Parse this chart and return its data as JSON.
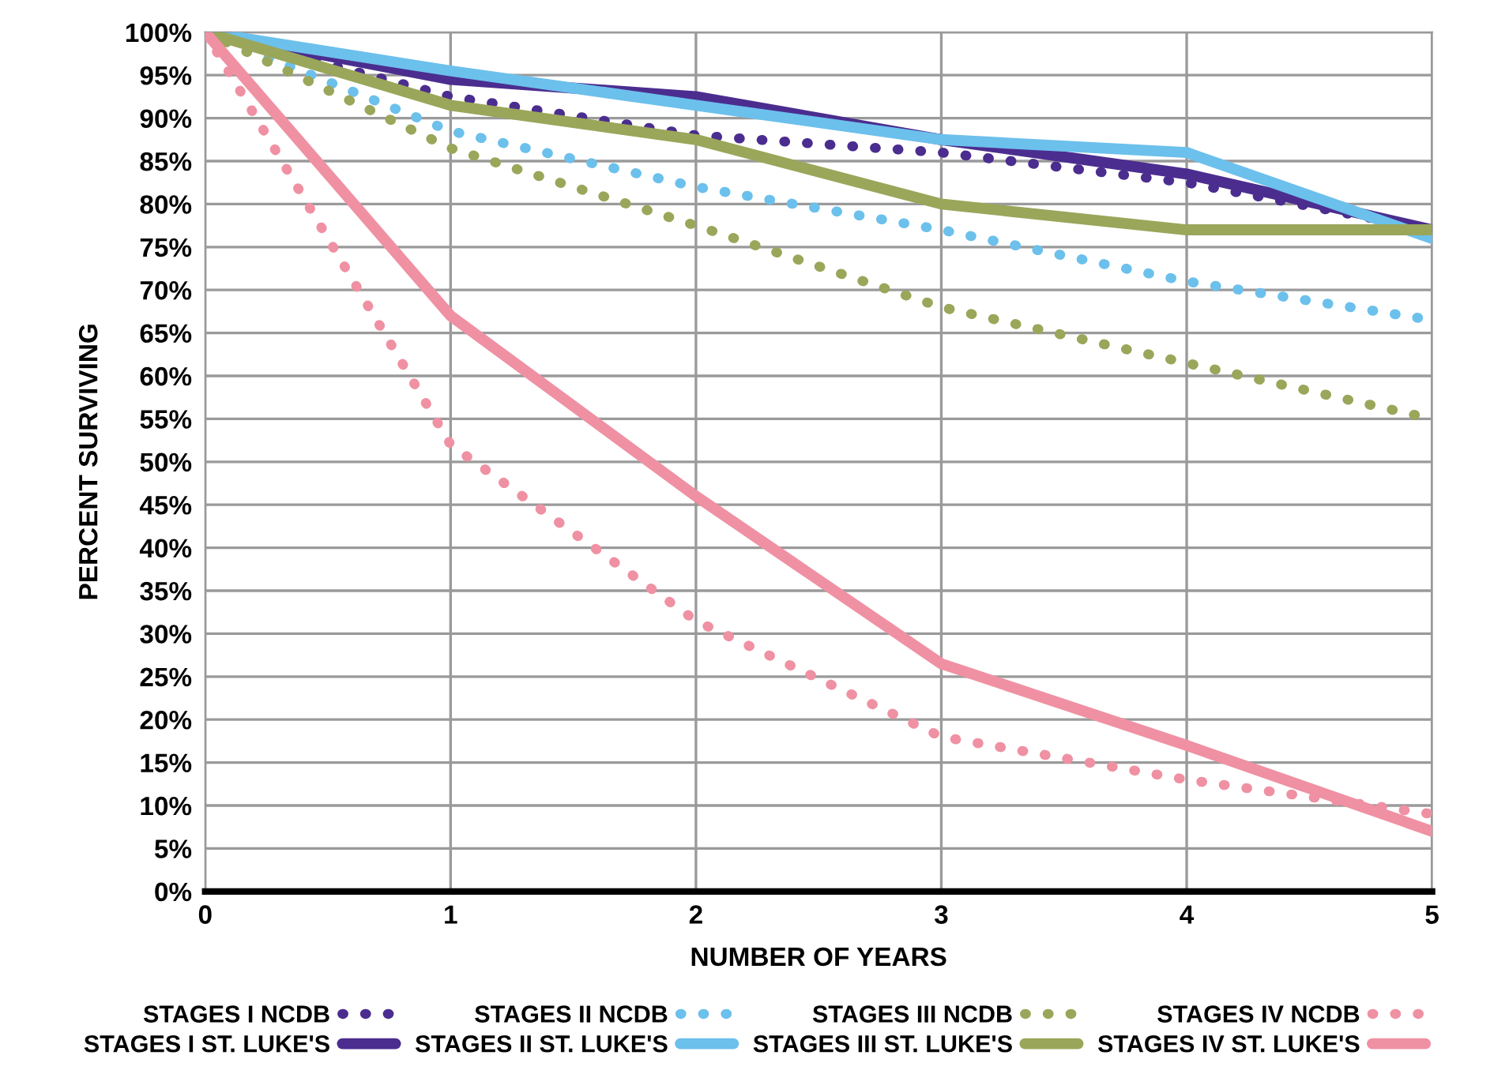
{
  "chart_data": {
    "type": "line",
    "xlabel": "NUMBER OF YEARS",
    "ylabel": "PERCENT SURVIVING",
    "x": [
      0,
      1,
      2,
      3,
      4,
      5
    ],
    "xlim": [
      0,
      5
    ],
    "xticks": [
      0,
      1,
      2,
      3,
      4,
      5
    ],
    "ylim": [
      0,
      100
    ],
    "yticks": [
      {
        "value": 0,
        "label": "0%"
      },
      {
        "value": 5,
        "label": "5%"
      },
      {
        "value": 10,
        "label": "10%"
      },
      {
        "value": 15,
        "label": "15%"
      },
      {
        "value": 20,
        "label": "20%"
      },
      {
        "value": 25,
        "label": "25%"
      },
      {
        "value": 30,
        "label": "30%"
      },
      {
        "value": 35,
        "label": "35%"
      },
      {
        "value": 40,
        "label": "40%"
      },
      {
        "value": 45,
        "label": "45%"
      },
      {
        "value": 50,
        "label": "50%"
      },
      {
        "value": 55,
        "label": "55%"
      },
      {
        "value": 60,
        "label": "60%"
      },
      {
        "value": 65,
        "label": "65%"
      },
      {
        "value": 70,
        "label": "70%"
      },
      {
        "value": 75,
        "label": "75%"
      },
      {
        "value": 80,
        "label": "80%"
      },
      {
        "value": 85,
        "label": "85%"
      },
      {
        "value": 90,
        "label": "90%"
      },
      {
        "value": 95,
        "label": "95%"
      },
      {
        "value": 100,
        "label": "100%"
      }
    ],
    "grid": true,
    "legend": "bottom",
    "marker": "none",
    "series": [
      {
        "name": "STAGES I NCDB",
        "color": "#4b2d8f",
        "line_style": "dotted",
        "values": [
          100,
          92.5,
          88,
          86,
          82.5,
          77
        ]
      },
      {
        "name": "STAGES I ST. LUKE'S",
        "color": "#4b2d8f",
        "line_style": "solid",
        "values": [
          100,
          94.5,
          92.5,
          87.5,
          83.5,
          77
        ]
      },
      {
        "name": "STAGES II NCDB",
        "color": "#6cc0ec",
        "line_style": "dotted",
        "values": [
          100,
          88.5,
          82,
          77,
          71,
          66.5
        ]
      },
      {
        "name": "STAGES II ST. LUKE'S",
        "color": "#6cc0ec",
        "line_style": "solid",
        "values": [
          100,
          95.5,
          91.5,
          87.5,
          86,
          76
        ]
      },
      {
        "name": "STAGES III NCDB",
        "color": "#9aa65a",
        "line_style": "dotted",
        "values": [
          100,
          86.5,
          77.5,
          68,
          61.5,
          55
        ]
      },
      {
        "name": "STAGES III ST. LUKE'S",
        "color": "#9aa65a",
        "line_style": "solid",
        "values": [
          100,
          91.5,
          87.5,
          80,
          77,
          77
        ]
      },
      {
        "name": "STAGES IV NCDB",
        "color": "#ef91a3",
        "line_style": "dotted",
        "values": [
          100,
          52,
          31.5,
          18,
          13,
          9
        ]
      },
      {
        "name": "STAGES IV ST. LUKE'S",
        "color": "#ef91a3",
        "line_style": "solid",
        "values": [
          100,
          67,
          46,
          26.5,
          17,
          7
        ]
      }
    ]
  }
}
